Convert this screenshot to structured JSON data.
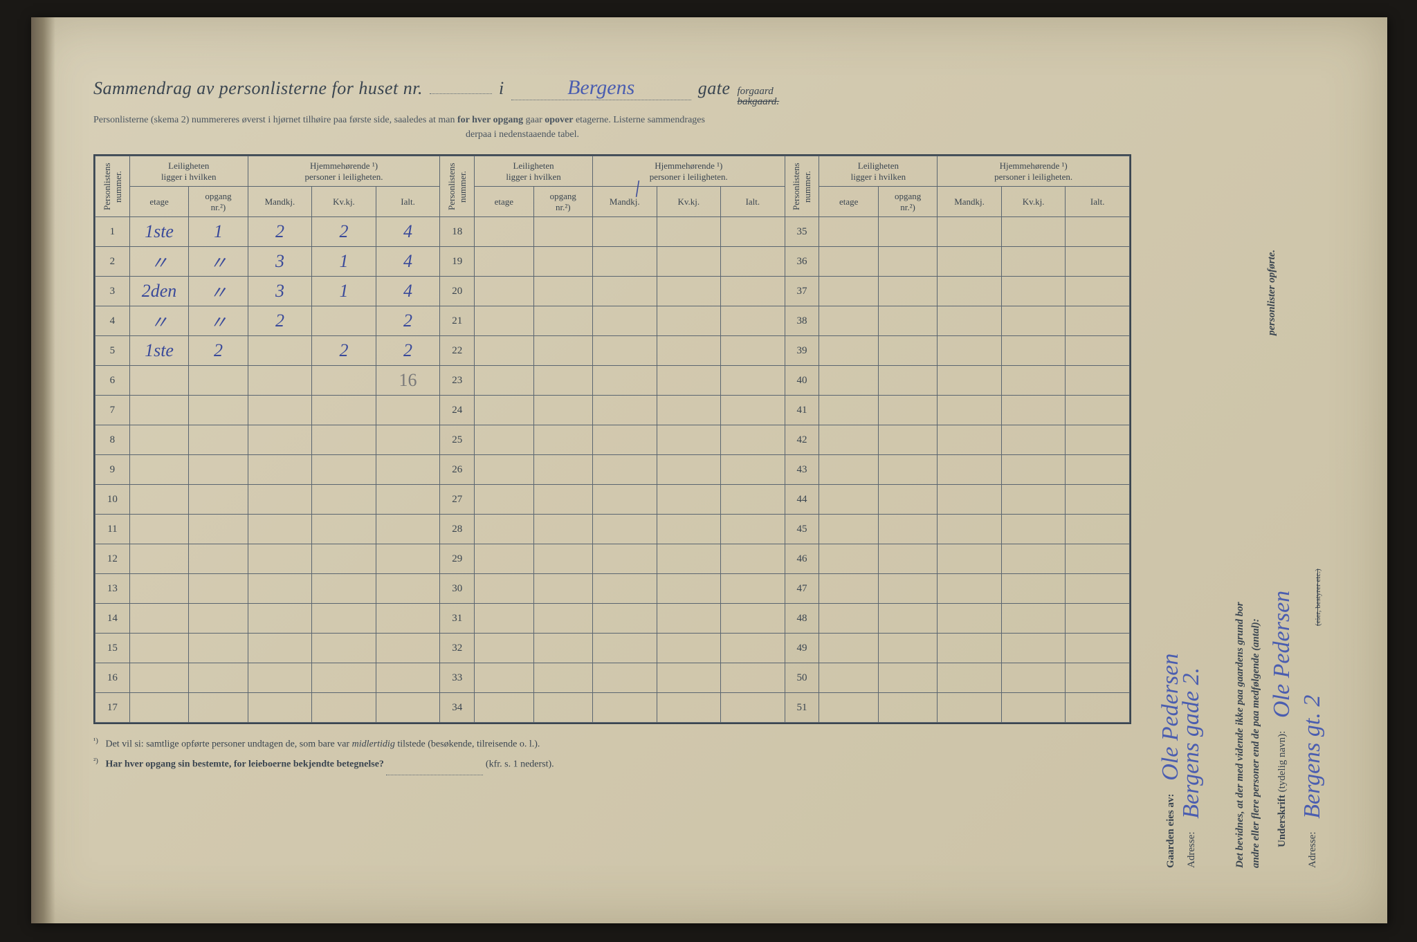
{
  "header": {
    "title_prefix": "Sammendrag av personlisterne for huset nr.",
    "nr_value": "",
    "i_label": "i",
    "street_value": "Bergens",
    "gate_label": "gate",
    "suffix_top": "forgaard",
    "suffix_bottom": "bakgaard.",
    "sub_line1": "Personlisterne (skema 2) nummereres øverst i hjørnet tilhøire paa første side, saaledes at man",
    "sub_line1_bold": "for hver opgang",
    "sub_line1_rest": "gaar",
    "sub_line1_bold2": "opover",
    "sub_line1_rest2": "etagerne.   Listerne sammendrages",
    "sub_line2": "derpaa i nedenstaaende tabel."
  },
  "overlay": {
    "slash_i": "/"
  },
  "table": {
    "columns": {
      "personlist": "Personlistens\nnummer.",
      "leilighet_group": "Leiligheten\nligger i hvilken",
      "hjem_group": "Hjemmehørende ¹)\npersoner i leiligheten.",
      "etage": "etage",
      "opgang": "opgang\nnr.²)",
      "mandkj": "Mandkj.",
      "kvkj": "Kv.kj.",
      "ialt": "Ialt."
    },
    "sections": [
      {
        "rows_from": 1,
        "rows_to": 17
      },
      {
        "rows_from": 18,
        "rows_to": 34
      },
      {
        "rows_from": 35,
        "rows_to": 51
      }
    ],
    "data": {
      "1": {
        "etage": "1ste",
        "opgang": "1",
        "m": "2",
        "k": "2",
        "i": "4"
      },
      "2": {
        "etage": "〃",
        "opgang": "〃",
        "m": "3",
        "k": "1",
        "i": "4"
      },
      "3": {
        "etage": "2den",
        "opgang": "〃",
        "m": "3",
        "k": "1",
        "i": "4"
      },
      "4": {
        "etage": "〃",
        "opgang": "〃",
        "m": "2",
        "k": "",
        "i": "2"
      },
      "5": {
        "etage": "1ste",
        "opgang": "2",
        "m": "",
        "k": "2",
        "i": "2"
      },
      "6": {
        "etage": "",
        "opgang": "",
        "m": "",
        "k": "",
        "i": "16",
        "i_gray": true
      }
    }
  },
  "footnotes": {
    "f1_sup": "¹)",
    "f1_text": "Det vil si: samtlige opførte personer undtagen de, som bare var",
    "f1_em": "midlertidig",
    "f1_rest": "tilstede (besøkende, tilreisende o. l.).",
    "f2_sup": "²)",
    "f2_bold": "Har hver opgang sin bestemte, for leieboerne bekjendte betegnelse?",
    "f2_ref": "(kfr. s. 1 nederst)."
  },
  "right": {
    "gaarden_label": "Gaarden eies av:",
    "gaarden_value": "Ole Pedersen",
    "adresse_label": "Adresse:",
    "adresse_value": "Bergens gade 2.",
    "bevidnes_line1": "Det bevidnes, at der med vidende ikke paa gaardens grund bor",
    "bevidnes_line2": "andre eller flere personer end de paa medfølgende (antal):",
    "bevidnes_line3": "personlister opførte.",
    "underskrift_label": "Underskrift",
    "underskrift_paren": "(tydelig navn):",
    "underskrift_value": "Ole Pedersen",
    "adresse2_label": "Adresse:",
    "adresse2_value": "Bergens gt. 2",
    "eier_note": "(eier, bestyrer etc.)"
  },
  "colors": {
    "print_ink": "#3a4550",
    "handwriting": "#4a5db0",
    "paper_light": "#d8d0b8",
    "paper_dark": "#cbc2a6",
    "border": "#5a6570"
  },
  "typography": {
    "header_italic_pt": 26,
    "body_pt": 14,
    "table_cell_pt": 13,
    "handwriting_pt": 26
  }
}
